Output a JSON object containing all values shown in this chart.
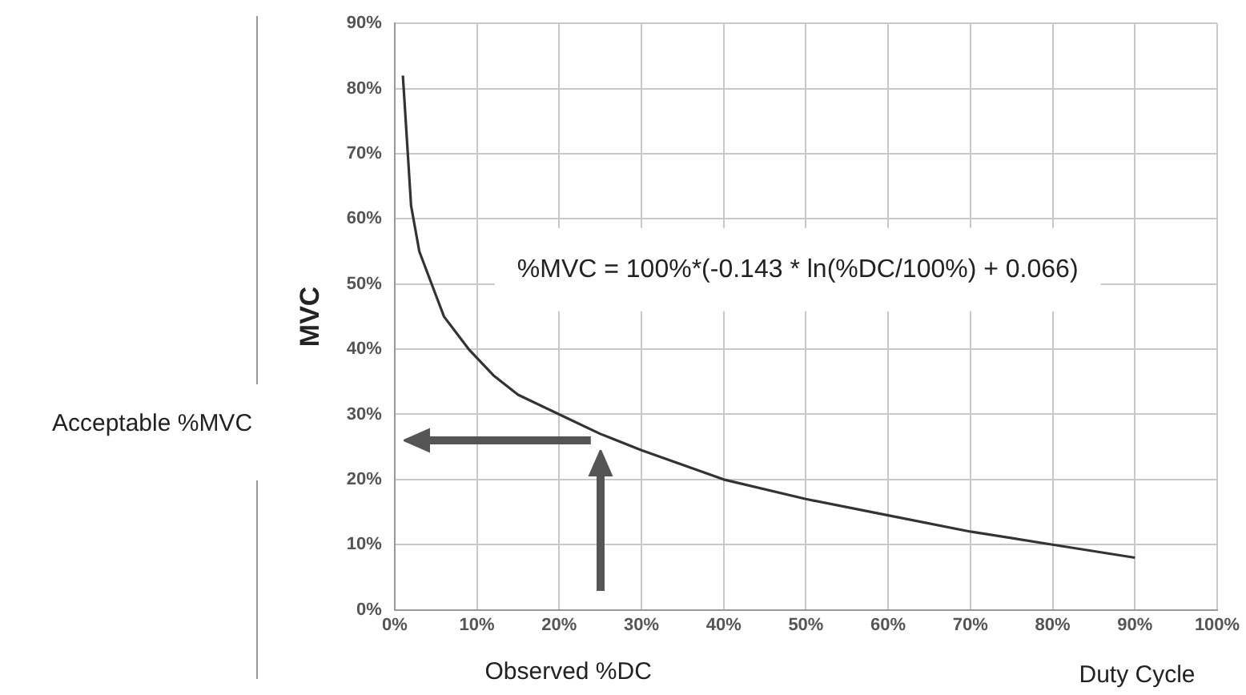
{
  "chart_data": {
    "type": "line",
    "ylabel": "MVC",
    "xlabel": "Duty Cycle",
    "annotations": [
      "%MVC = 100%*(-0.143 * ln(%DC/100%) + 0.066)",
      "Acceptable %MVC",
      "Observed %DC"
    ],
    "series": [
      {
        "color": "#333333",
        "x": [
          1,
          1.5,
          2,
          3,
          4.5,
          6,
          9,
          12,
          15,
          20,
          25,
          30,
          40,
          50,
          60,
          70,
          80,
          90
        ],
        "values": [
          82,
          72,
          62,
          55,
          50,
          45,
          40,
          36,
          33,
          30,
          27,
          24.5,
          20,
          17,
          14.5,
          12,
          10,
          8
        ]
      }
    ],
    "xlim": [
      0,
      100
    ],
    "xticks": [
      {
        "value": 0,
        "label": "0%"
      },
      {
        "value": 10,
        "label": "10%"
      },
      {
        "value": 20,
        "label": "20%"
      },
      {
        "value": 30,
        "label": "30%"
      },
      {
        "value": 40,
        "label": "40%"
      },
      {
        "value": 50,
        "label": "50%"
      },
      {
        "value": 60,
        "label": "60%"
      },
      {
        "value": 70,
        "label": "70%"
      },
      {
        "value": 80,
        "label": "80%"
      },
      {
        "value": 90,
        "label": "90%"
      },
      {
        "value": 100,
        "label": "100%"
      }
    ],
    "ylim": [
      0,
      90
    ],
    "yticks": [
      {
        "value": 0,
        "label": "0%"
      },
      {
        "value": 10,
        "label": "10%"
      },
      {
        "value": 20,
        "label": "20%"
      },
      {
        "value": 30,
        "label": "30%"
      },
      {
        "value": 40,
        "label": "40%"
      },
      {
        "value": 50,
        "label": "50%"
      },
      {
        "value": 60,
        "label": "60%"
      },
      {
        "value": 70,
        "label": "70%"
      },
      {
        "value": 80,
        "label": "80%"
      },
      {
        "value": 90,
        "label": "90%"
      }
    ],
    "grid": true,
    "legend": false,
    "marker": "none",
    "line_style": "solid"
  }
}
